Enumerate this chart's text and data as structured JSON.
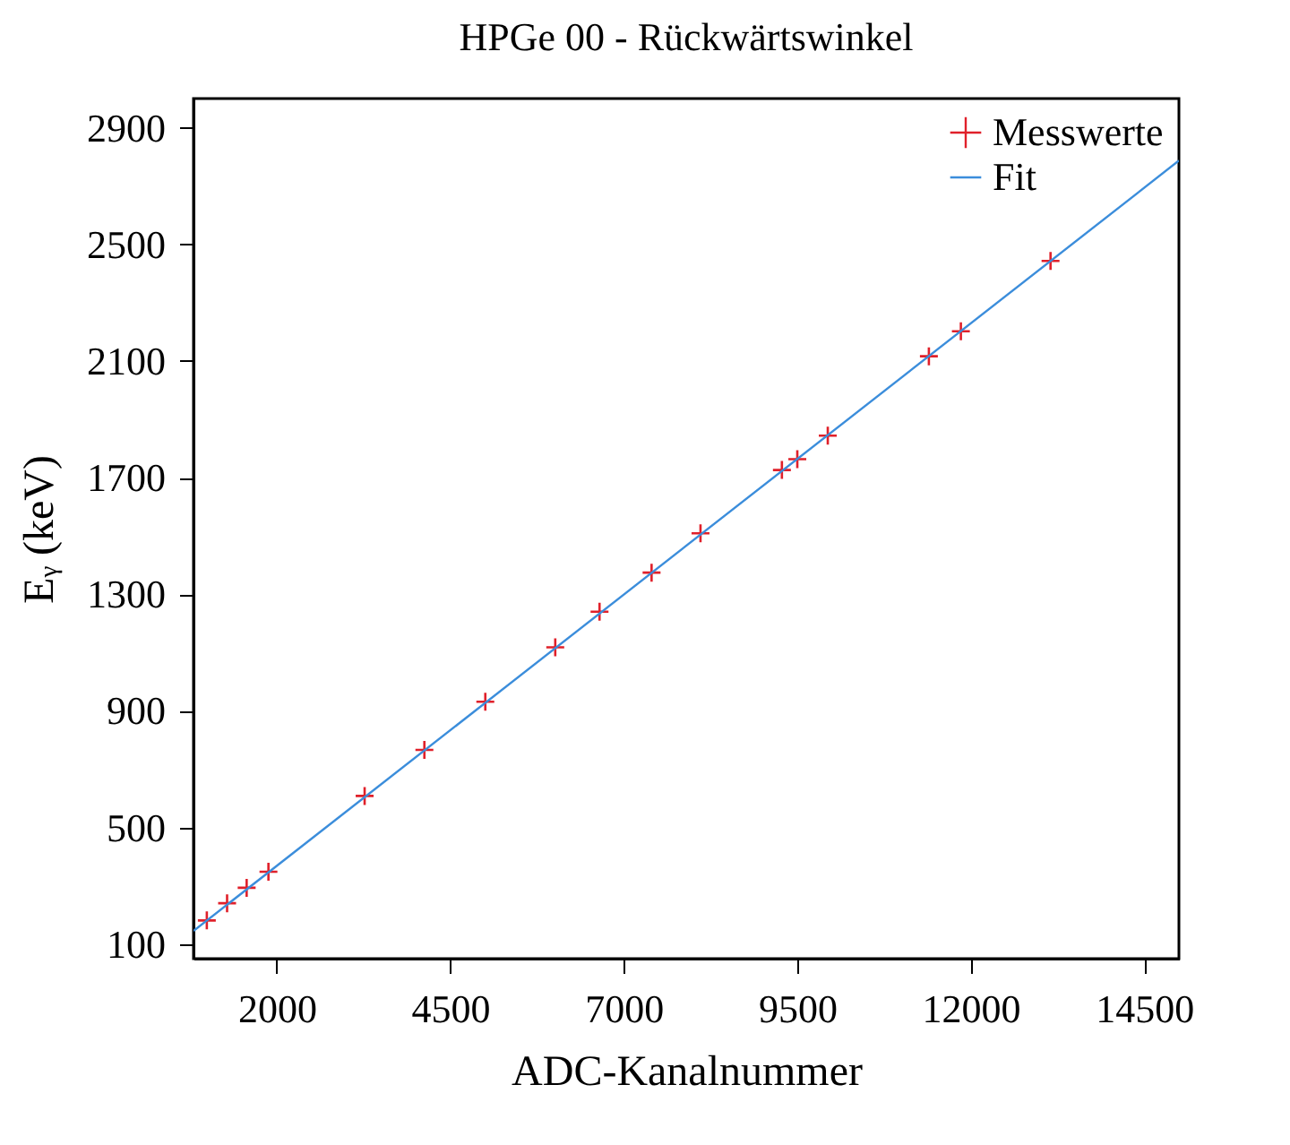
{
  "chart_data": {
    "type": "scatter",
    "title": "HPGe 00 - Rückwärtswinkel",
    "xlabel": "ADC-Kanalnummer",
    "ylabel": "Eᵧ (keV)",
    "xlim": [
      800,
      15000
    ],
    "xticks": [
      2000,
      4500,
      7000,
      9500,
      12000,
      14500
    ],
    "ylim": [
      50,
      3000
    ],
    "yticks": [
      100,
      500,
      900,
      1300,
      1700,
      2100,
      2500,
      2900
    ],
    "grid": false,
    "legend": "top right",
    "series": [
      {
        "name": "Messwerte",
        "marker": "cross",
        "color": "#e0202a",
        "x": [
          992,
          1284,
          1566,
          1880,
          3266,
          4127,
          5005,
          6013,
          6651,
          7401,
          8106,
          9279,
          9501,
          9940,
          11397,
          11858,
          13150
        ],
        "values": [
          181,
          240,
          293,
          348,
          608,
          766,
          931,
          1118,
          1240,
          1374,
          1509,
          1726,
          1763,
          1844,
          2116,
          2202,
          2443
        ]
      },
      {
        "name": "Fit",
        "type": "line",
        "color": "#3b8ddb",
        "line_style": "solid",
        "x": [
          800,
          15000
        ],
        "values": [
          145,
          2787
        ]
      }
    ]
  }
}
